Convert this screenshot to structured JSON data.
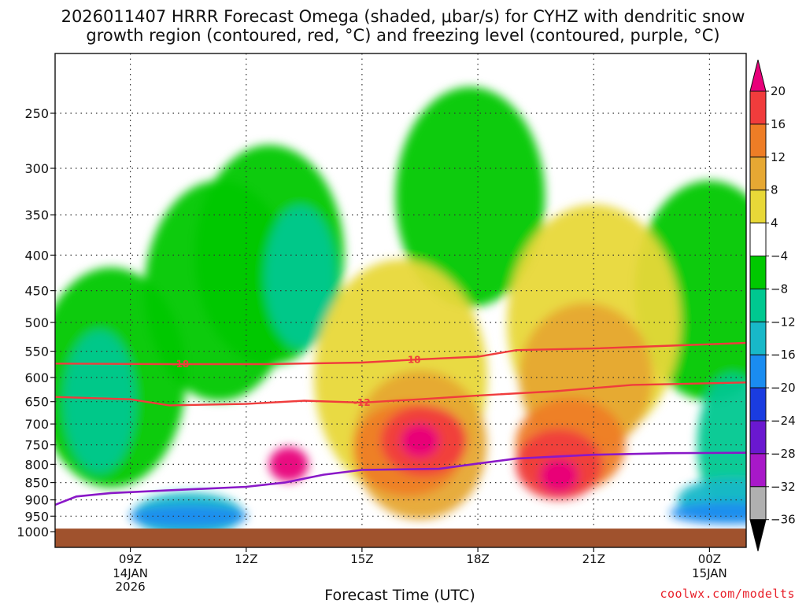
{
  "title": {
    "line1": "2026011407 HRRR Forecast Omega (shaded, μbar/s) for CYHZ with dendritic snow",
    "line2": "growth region (contoured, red, °C) and freezing level (contoured, purple, °C)"
  },
  "credit": "coolwx.com/modelts",
  "chart_data": {
    "type": "heatmap",
    "title": "2026011407 HRRR Forecast Omega (shaded, μbar/s) for CYHZ with dendritic snow growth region (contoured, red, °C) and freezing level (contoured, purple, °C)",
    "xlabel": "Forecast Time (UTC)",
    "ylabel": "",
    "x_ticks": [
      {
        "hour": 9,
        "label": "09Z",
        "sub": [
          "14JAN",
          "2026"
        ]
      },
      {
        "hour": 12,
        "label": "12Z",
        "sub": []
      },
      {
        "hour": 15,
        "label": "15Z",
        "sub": []
      },
      {
        "hour": 18,
        "label": "18Z",
        "sub": []
      },
      {
        "hour": 21,
        "label": "21Z",
        "sub": []
      },
      {
        "hour": 24,
        "label": "00Z",
        "sub": [
          "15JAN"
        ]
      }
    ],
    "xlim": [
      7.05,
      24.95
    ],
    "y_ticks": [
      250,
      300,
      350,
      400,
      450,
      500,
      550,
      600,
      650,
      700,
      750,
      800,
      850,
      900,
      950,
      1000
    ],
    "ylim": [
      1000,
      200
    ],
    "y_scale": "log-pressure",
    "colorbar": {
      "levels": [
        20,
        16,
        12,
        8,
        4,
        -4,
        -8,
        -12,
        -16,
        -20,
        -24,
        -28,
        -32,
        -36
      ],
      "colors": [
        "#e8007a",
        "#f03c3c",
        "#ee7d26",
        "#e6a833",
        "#e8d838",
        "#ffffff",
        "#00c800",
        "#00c890",
        "#18b8c8",
        "#1a8cf0",
        "#1a3ce0",
        "#6a18d0",
        "#a818c8",
        "#b0b0b0",
        "#000000"
      ],
      "top_color": "#e8007a",
      "bottom_color": "#000000"
    },
    "omega_regions": [
      {
        "level_range": [
          -8,
          -4
        ],
        "color": "#00c800",
        "centers": [
          {
            "hour": 8.5,
            "p": 600
          },
          {
            "hour": 11.3,
            "p": 450
          },
          {
            "hour": 12.6,
            "p": 400
          },
          {
            "hour": 17.8,
            "p": 330
          },
          {
            "hour": 24.0,
            "p": 450
          }
        ]
      },
      {
        "level_range": [
          -12,
          -8
        ],
        "color": "#00c890",
        "centers": [
          {
            "hour": 8.2,
            "p": 650
          },
          {
            "hour": 13.4,
            "p": 430
          },
          {
            "hour": 24.6,
            "p": 750
          }
        ]
      },
      {
        "level_range": [
          -16,
          -12
        ],
        "color": "#18b8c8",
        "centers": [
          {
            "hour": 10.5,
            "p": 945
          },
          {
            "hour": 24.6,
            "p": 900
          }
        ]
      },
      {
        "level_range": [
          -20,
          -16
        ],
        "color": "#1a8cf0",
        "centers": [
          {
            "hour": 10.5,
            "p": 950
          },
          {
            "hour": 24.5,
            "p": 940
          }
        ]
      },
      {
        "level_range": [
          4,
          8
        ],
        "color": "#e8d838",
        "centers": [
          {
            "hour": 16.0,
            "p": 600
          },
          {
            "hour": 21.0,
            "p": 500
          }
        ]
      },
      {
        "level_range": [
          8,
          12
        ],
        "color": "#e6a833",
        "centers": [
          {
            "hour": 16.5,
            "p": 750
          },
          {
            "hour": 20.8,
            "p": 600
          }
        ]
      },
      {
        "level_range": [
          12,
          16
        ],
        "color": "#ee7d26",
        "centers": [
          {
            "hour": 16.2,
            "p": 760
          },
          {
            "hour": 20.4,
            "p": 750
          }
        ]
      },
      {
        "level_range": [
          16,
          20
        ],
        "color": "#f03c3c",
        "centers": [
          {
            "hour": 16.6,
            "p": 740
          },
          {
            "hour": 20.1,
            "p": 800
          }
        ]
      },
      {
        "level_range": [
          20,
          24
        ],
        "color": "#e8007a",
        "centers": [
          {
            "hour": 16.5,
            "p": 740
          },
          {
            "hour": 13.1,
            "p": 800
          },
          {
            "hour": 20.1,
            "p": 830
          }
        ]
      }
    ],
    "isotherms": [
      {
        "value": -18,
        "label": "-18",
        "color": "#f03c3c",
        "points": [
          [
            7.05,
            573
          ],
          [
            10.0,
            574
          ],
          [
            12.5,
            574
          ],
          [
            15.0,
            571
          ],
          [
            16.5,
            565
          ],
          [
            18.0,
            560
          ],
          [
            19.0,
            548
          ],
          [
            21.0,
            545
          ],
          [
            23.0,
            540
          ],
          [
            24.95,
            535
          ]
        ]
      },
      {
        "value": -12,
        "label": "-12",
        "color": "#f03c3c",
        "points": [
          [
            7.05,
            640
          ],
          [
            9.0,
            645
          ],
          [
            10.0,
            658
          ],
          [
            12.0,
            655
          ],
          [
            13.5,
            648
          ],
          [
            15.0,
            652
          ],
          [
            16.5,
            645
          ],
          [
            18.0,
            637
          ],
          [
            20.0,
            628
          ],
          [
            22.0,
            615
          ],
          [
            24.95,
            610
          ]
        ]
      }
    ],
    "freezing_level": {
      "value": 0,
      "color": "#8a18c8",
      "points": [
        [
          7.05,
          915
        ],
        [
          7.6,
          890
        ],
        [
          8.5,
          880
        ],
        [
          10.0,
          872
        ],
        [
          12.0,
          862
        ],
        [
          13.0,
          850
        ],
        [
          14.0,
          828
        ],
        [
          15.0,
          815
        ],
        [
          17.0,
          812
        ],
        [
          18.0,
          798
        ],
        [
          19.0,
          785
        ],
        [
          21.0,
          775
        ],
        [
          23.0,
          771
        ],
        [
          24.95,
          770
        ]
      ]
    },
    "ground_pressure": 990
  }
}
